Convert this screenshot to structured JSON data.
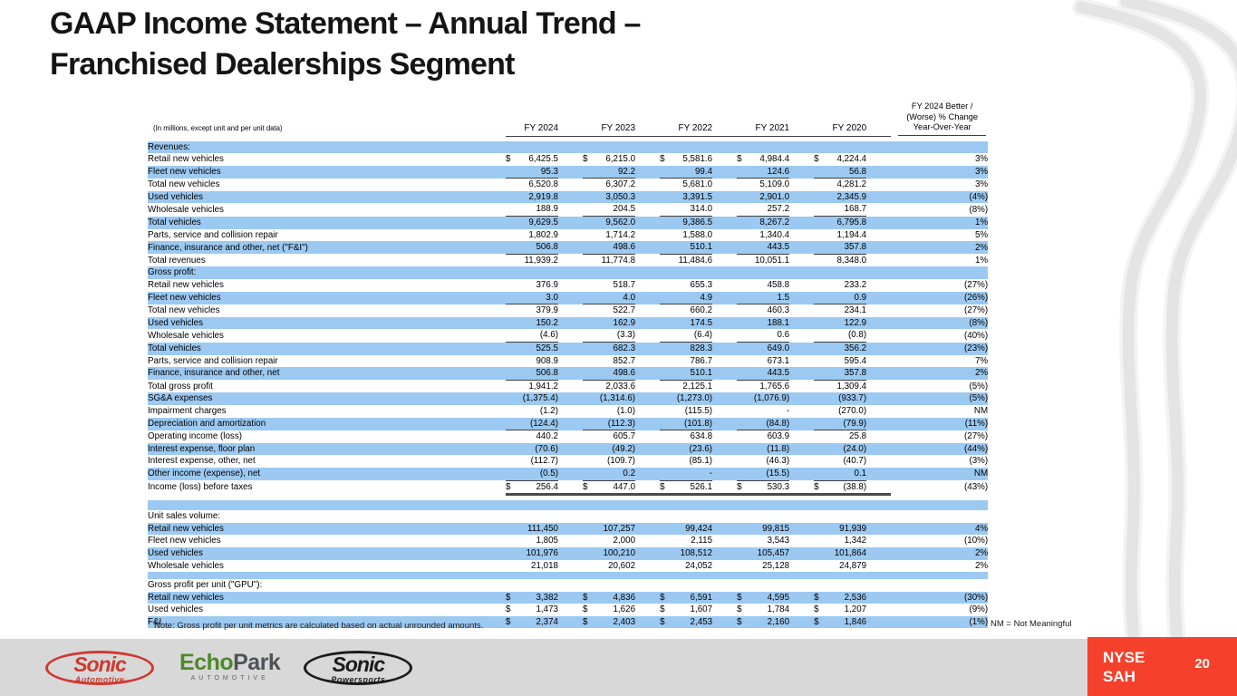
{
  "slide": {
    "title_line1": "GAAP Income Statement – Annual Trend –",
    "title_line2": "Franchised Dealerships Segment",
    "note": "Note: Gross profit per unit metrics are calculated based on actual unrounded amounts.",
    "nm_note": "NM = Not Meaningful",
    "ticker_line1": "NYSE",
    "ticker_line2": "SAH",
    "page_number": "20"
  },
  "colors": {
    "row_shade_blue": "#9CC9F1",
    "ticker_red": "#F5402C",
    "sonic_red": "#CE3A30",
    "echopark_green": "#4C8A27",
    "footer_gray": "#D8D8D8"
  },
  "logos": {
    "sonic_automotive": {
      "name": "Sonic",
      "sub": "Automotive"
    },
    "echopark": {
      "name_green": "Echo",
      "name_gray": "Park",
      "sub": "AUTOMOTIVE"
    },
    "sonic_powersports": {
      "name": "Sonic",
      "sub": "Powersports"
    }
  },
  "table": {
    "unit_note": "(In millions, except unit and per unit data)",
    "col_headers": [
      "FY 2024",
      "FY 2023",
      "FY 2022",
      "FY 2021",
      "FY 2020"
    ],
    "yoy_header": [
      "FY 2024 Better /",
      "(Worse) % Change",
      "Year-Over-Year"
    ],
    "rows": [
      {
        "type": "spacer",
        "shade": false,
        "h": 5
      },
      {
        "type": "section",
        "label": "Revenues:",
        "shade": true
      },
      {
        "label": "Retail new vehicles",
        "indent": 1,
        "dollar": true,
        "values": [
          "6,425.5",
          "6,215.0",
          "5,581.6",
          "4,984.4",
          "4,224.4"
        ],
        "yoy": "3%",
        "shade": false
      },
      {
        "label": "Fleet new vehicles",
        "indent": 1,
        "values": [
          "95.3",
          "92.2",
          "99.4",
          "124.6",
          "56.8"
        ],
        "yoy": "3%",
        "shade": true,
        "underline": true
      },
      {
        "label": "Total new vehicles",
        "indent": 2,
        "values": [
          "6,520.8",
          "6,307.2",
          "5,681.0",
          "5,109.0",
          "4,281.2"
        ],
        "yoy": "3%",
        "shade": false
      },
      {
        "label": "Used vehicles",
        "indent": 1,
        "values": [
          "2,919.8",
          "3,050.3",
          "3,391.5",
          "2,901.0",
          "2,345.9"
        ],
        "yoy": "(4%)",
        "shade": true
      },
      {
        "label": "Wholesale vehicles",
        "indent": 1,
        "values": [
          "188.9",
          "204.5",
          "314.0",
          "257.2",
          "168.7"
        ],
        "yoy": "(8%)",
        "shade": false,
        "underline": true
      },
      {
        "label": "Total vehicles",
        "indent": 2,
        "values": [
          "9,629.5",
          "9,562.0",
          "9,386.5",
          "8,267.2",
          "6,795.8"
        ],
        "yoy": "1%",
        "shade": true
      },
      {
        "label": "Parts, service and collision repair",
        "indent": 1,
        "values": [
          "1,802.9",
          "1,714.2",
          "1,588.0",
          "1,340.4",
          "1,194.4"
        ],
        "yoy": "5%",
        "shade": false
      },
      {
        "label": "Finance, insurance and other, net (\"F&I\")",
        "indent": 1,
        "values": [
          "506.8",
          "498.6",
          "510.1",
          "443.5",
          "357.8"
        ],
        "yoy": "2%",
        "shade": true,
        "underline": true
      },
      {
        "label": "Total revenues",
        "indent": 2,
        "values": [
          "11,939.2",
          "11,774.8",
          "11,484.6",
          "10,051.1",
          "8,348.0"
        ],
        "yoy": "1%",
        "shade": false
      },
      {
        "type": "section",
        "label": "Gross profit:",
        "shade": true
      },
      {
        "label": "Retail new vehicles",
        "indent": 1,
        "values": [
          "376.9",
          "518.7",
          "655.3",
          "458.8",
          "233.2"
        ],
        "yoy": "(27%)",
        "shade": false
      },
      {
        "label": "Fleet new vehicles",
        "indent": 1,
        "values": [
          "3.0",
          "4.0",
          "4.9",
          "1.5",
          "0.9"
        ],
        "yoy": "(26%)",
        "shade": true,
        "underline": true
      },
      {
        "label": "Total new vehicles",
        "indent": 2,
        "values": [
          "379.9",
          "522.7",
          "660.2",
          "460.3",
          "234.1"
        ],
        "yoy": "(27%)",
        "shade": false
      },
      {
        "label": "Used vehicles",
        "indent": 1,
        "values": [
          "150.2",
          "162.9",
          "174.5",
          "188.1",
          "122.9"
        ],
        "yoy": "(8%)",
        "shade": true
      },
      {
        "label": "Wholesale vehicles",
        "indent": 1,
        "values": [
          "(4.6)",
          "(3.3)",
          "(6.4)",
          "0.6",
          "(0.8)"
        ],
        "yoy": "(40%)",
        "shade": false,
        "underline": true
      },
      {
        "label": "Total vehicles",
        "indent": 2,
        "values": [
          "525.5",
          "682.3",
          "828.3",
          "649.0",
          "356.2"
        ],
        "yoy": "(23%)",
        "shade": true
      },
      {
        "label": "Parts, service and collision repair",
        "indent": 1,
        "values": [
          "908.9",
          "852.7",
          "786.7",
          "673.1",
          "595.4"
        ],
        "yoy": "7%",
        "shade": false
      },
      {
        "label": "Finance, insurance and other, net",
        "indent": 1,
        "values": [
          "506.8",
          "498.6",
          "510.1",
          "443.5",
          "357.8"
        ],
        "yoy": "2%",
        "shade": true,
        "underline": true
      },
      {
        "label": "Total gross profit",
        "indent": 2,
        "values": [
          "1,941.2",
          "2,033.6",
          "2,125.1",
          "1,765.6",
          "1,309.4"
        ],
        "yoy": "(5%)",
        "shade": false
      },
      {
        "label": "SG&A expenses",
        "indent": 1,
        "values": [
          "(1,375.4)",
          "(1,314.6)",
          "(1,273.0)",
          "(1,076.9)",
          "(933.7)"
        ],
        "yoy": "(5%)",
        "shade": true
      },
      {
        "label": "Impairment charges",
        "indent": 1,
        "values": [
          "(1.2)",
          "(1.0)",
          "(115.5)",
          "-",
          "(270.0)"
        ],
        "yoy": "NM",
        "shade": false
      },
      {
        "label": "Depreciation and amortization",
        "indent": 1,
        "values": [
          "(124.4)",
          "(112.3)",
          "(101.8)",
          "(84.8)",
          "(79.9)"
        ],
        "yoy": "(11%)",
        "shade": true,
        "underline": true
      },
      {
        "label": "Operating income (loss)",
        "indent": 2,
        "values": [
          "440.2",
          "605.7",
          "634.8",
          "603.9",
          "25.8"
        ],
        "yoy": "(27%)",
        "shade": false
      },
      {
        "label": "Interest expense, floor plan",
        "indent": 1,
        "values": [
          "(70.6)",
          "(49.2)",
          "(23.6)",
          "(11.8)",
          "(24.0)"
        ],
        "yoy": "(44%)",
        "shade": true
      },
      {
        "label": "Interest expense, other, net",
        "indent": 1,
        "values": [
          "(112.7)",
          "(109.7)",
          "(85.1)",
          "(46.3)",
          "(40.7)"
        ],
        "yoy": "(3%)",
        "shade": false
      },
      {
        "label": "Other income (expense), net",
        "indent": 1,
        "values": [
          "(0.5)",
          "0.2",
          "-",
          "(15.5)",
          "0.1"
        ],
        "yoy": "NM",
        "shade": true,
        "underline": true
      },
      {
        "label": "Income (loss) before taxes",
        "indent": 2,
        "dollar": true,
        "values": [
          "256.4",
          "447.0",
          "526.1",
          "530.3",
          "(38.8)"
        ],
        "yoy": "(43%)",
        "shade": false,
        "thick": true
      },
      {
        "type": "spacer",
        "shade": false,
        "h": 5
      },
      {
        "type": "spacer",
        "shade": true,
        "h": 11
      },
      {
        "type": "section",
        "label": "Unit sales volume:",
        "shade": false
      },
      {
        "label": "Retail new vehicles",
        "indent": 1,
        "values": [
          "111,450",
          "107,257",
          "99,424",
          "99,815",
          "91,939"
        ],
        "yoy": "4%",
        "shade": true
      },
      {
        "label": "Fleet new vehicles",
        "indent": 1,
        "values": [
          "1,805",
          "2,000",
          "2,115",
          "3,543",
          "1,342"
        ],
        "yoy": "(10%)",
        "shade": false
      },
      {
        "label": "Used vehicles",
        "indent": 1,
        "values": [
          "101,976",
          "100,210",
          "108,512",
          "105,457",
          "101,864"
        ],
        "yoy": "2%",
        "shade": true
      },
      {
        "label": "Wholesale vehicles",
        "indent": 1,
        "values": [
          "21,018",
          "20,602",
          "24,052",
          "25,128",
          "24,879"
        ],
        "yoy": "2%",
        "shade": false
      },
      {
        "type": "spacer",
        "shade": true,
        "h": 8
      },
      {
        "type": "section",
        "label": "Gross profit per unit (\"GPU\"):",
        "shade": false
      },
      {
        "label": "Retail new vehicles",
        "indent": 1,
        "dollar": true,
        "values": [
          "3,382",
          "4,836",
          "6,591",
          "4,595",
          "2,536"
        ],
        "yoy": "(30%)",
        "shade": true
      },
      {
        "label": "Used vehicles",
        "indent": 1,
        "dollar": true,
        "values": [
          "1,473",
          "1,626",
          "1,607",
          "1,784",
          "1,207"
        ],
        "yoy": "(9%)",
        "shade": false
      },
      {
        "label": "F&I",
        "indent": 1,
        "dollar": true,
        "values": [
          "2,374",
          "2,403",
          "2,453",
          "2,160",
          "1,846"
        ],
        "yoy": "(1%)",
        "shade": true
      }
    ]
  }
}
